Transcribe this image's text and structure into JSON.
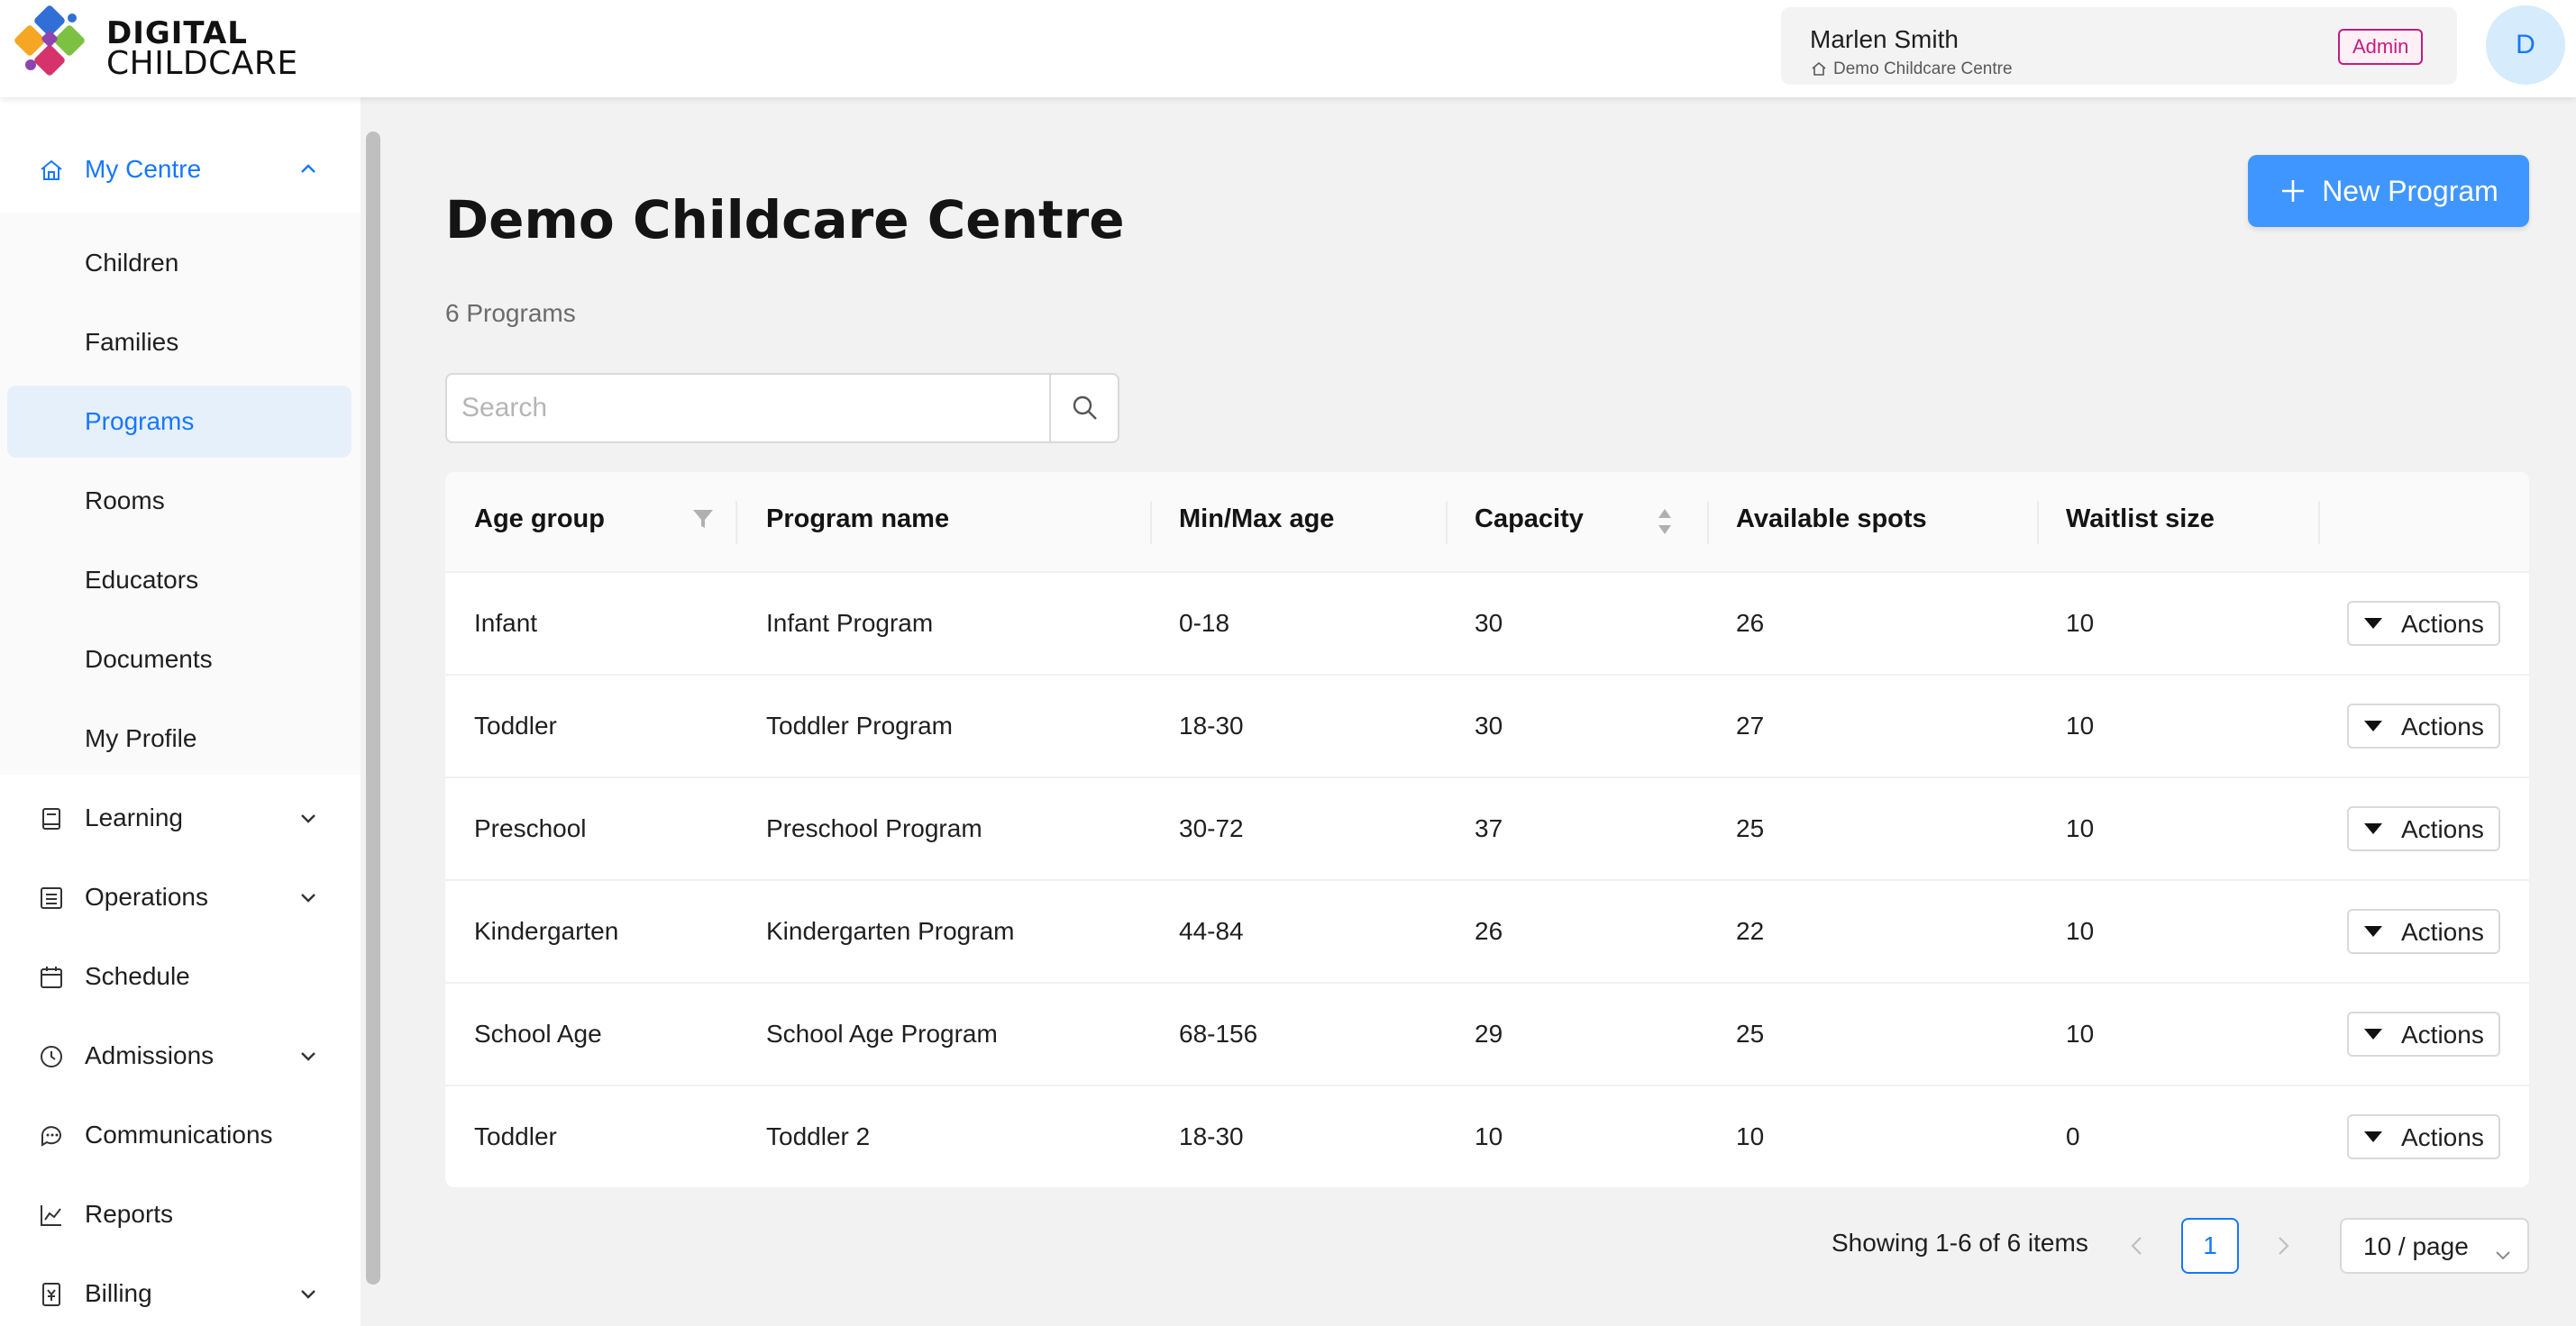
{
  "header": {
    "logo_line1": "DIGITAL",
    "logo_line2": "CHILDCARE",
    "user_name": "Marlen Smith",
    "centre_name": "Demo Childcare Centre",
    "role": "Admin",
    "avatar_initial": "D"
  },
  "sidebar": {
    "my_centre": "My Centre",
    "sub_items": [
      "Children",
      "Families",
      "Programs",
      "Rooms",
      "Educators",
      "Documents",
      "My Profile"
    ],
    "learning": "Learning",
    "operations": "Operations",
    "schedule": "Schedule",
    "admissions": "Admissions",
    "communications": "Communications",
    "reports": "Reports",
    "billing": "Billing"
  },
  "main": {
    "title": "Demo Childcare Centre",
    "program_count": "6 Programs",
    "new_program_label": "New Program",
    "search_placeholder": "Search"
  },
  "table": {
    "columns": [
      "Age group",
      "Program name",
      "Min/Max age",
      "Capacity",
      "Available spots",
      "Waitlist size"
    ],
    "action_label": "Actions",
    "rows": [
      {
        "age_group": "Infant",
        "program": "Infant Program",
        "age": "0-18",
        "capacity": "30",
        "spots": "26",
        "waitlist": "10"
      },
      {
        "age_group": "Toddler",
        "program": "Toddler Program",
        "age": "18-30",
        "capacity": "30",
        "spots": "27",
        "waitlist": "10"
      },
      {
        "age_group": "Preschool",
        "program": "Preschool Program",
        "age": "30-72",
        "capacity": "37",
        "spots": "25",
        "waitlist": "10"
      },
      {
        "age_group": "Kindergarten",
        "program": "Kindergarten Program",
        "age": "44-84",
        "capacity": "26",
        "spots": "22",
        "waitlist": "10"
      },
      {
        "age_group": "School Age",
        "program": "School Age Program",
        "age": "68-156",
        "capacity": "29",
        "spots": "25",
        "waitlist": "10"
      },
      {
        "age_group": "Toddler",
        "program": "Toddler 2",
        "age": "18-30",
        "capacity": "10",
        "spots": "10",
        "waitlist": "0"
      }
    ]
  },
  "pagination": {
    "summary": "Showing 1-6 of 6 items",
    "current_page": "1",
    "page_size": "10 / page"
  },
  "colors": {
    "primary": "#1677ff",
    "button": "#4096ff",
    "admin_badge": "#c41d7f"
  }
}
